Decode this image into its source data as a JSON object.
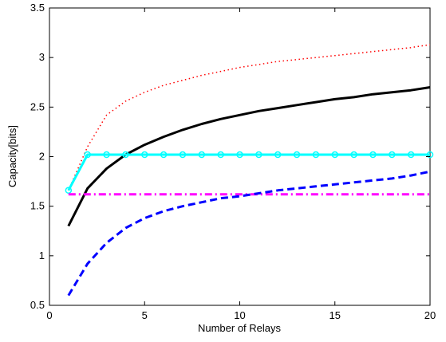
{
  "chart_data": {
    "type": "line",
    "title": "",
    "xlabel": "Number of Relays",
    "ylabel": "Capacity[bits]",
    "xlim": [
      0,
      20
    ],
    "ylim": [
      0.5,
      3.5
    ],
    "xticks": [
      0,
      5,
      10,
      15,
      20
    ],
    "xtick_labels": [
      "0",
      "5",
      "10",
      "15",
      "20"
    ],
    "yticks": [
      0.5,
      1,
      1.5,
      2,
      2.5,
      3,
      3.5
    ],
    "ytick_labels": [
      "0.5",
      "1",
      "1.5",
      "2",
      "2.5",
      "3",
      "3.5"
    ],
    "grid": false,
    "series": [
      {
        "style": "dotted",
        "color": "#ff0000",
        "x": [
          1,
          2,
          3,
          4,
          5,
          6,
          7,
          8,
          9,
          10,
          11,
          12,
          13,
          14,
          15,
          16,
          17,
          18,
          19,
          20
        ],
        "y": [
          1.66,
          2.1,
          2.42,
          2.56,
          2.65,
          2.72,
          2.77,
          2.82,
          2.86,
          2.9,
          2.93,
          2.96,
          2.98,
          3.0,
          3.02,
          3.04,
          3.06,
          3.08,
          3.1,
          3.13
        ]
      },
      {
        "style": "solid",
        "color": "#000000",
        "x": [
          1,
          2,
          3,
          4,
          5,
          6,
          7,
          8,
          9,
          10,
          11,
          12,
          13,
          14,
          15,
          16,
          17,
          18,
          19,
          20
        ],
        "y": [
          1.3,
          1.68,
          1.88,
          2.02,
          2.12,
          2.2,
          2.27,
          2.33,
          2.38,
          2.42,
          2.46,
          2.49,
          2.52,
          2.55,
          2.58,
          2.6,
          2.63,
          2.65,
          2.67,
          2.7
        ]
      },
      {
        "style": "solid-circle",
        "color": "#00ffff",
        "x": [
          1,
          2,
          3,
          4,
          5,
          6,
          7,
          8,
          9,
          10,
          11,
          12,
          13,
          14,
          15,
          16,
          17,
          18,
          19,
          20
        ],
        "y": [
          1.66,
          2.02,
          2.02,
          2.02,
          2.02,
          2.02,
          2.02,
          2.02,
          2.02,
          2.02,
          2.02,
          2.02,
          2.02,
          2.02,
          2.02,
          2.02,
          2.02,
          2.02,
          2.02,
          2.02
        ]
      },
      {
        "style": "dashdot",
        "color": "#ff00ff",
        "x": [
          1,
          20
        ],
        "y": [
          1.62,
          1.62
        ]
      },
      {
        "style": "dashed",
        "color": "#0000ff",
        "x": [
          1,
          2,
          3,
          4,
          5,
          6,
          7,
          8,
          9,
          10,
          11,
          12,
          13,
          14,
          15,
          16,
          17,
          18,
          19,
          20
        ],
        "y": [
          0.6,
          0.92,
          1.13,
          1.28,
          1.38,
          1.45,
          1.5,
          1.54,
          1.58,
          1.6,
          1.63,
          1.66,
          1.68,
          1.7,
          1.72,
          1.74,
          1.76,
          1.78,
          1.81,
          1.85
        ]
      }
    ]
  }
}
